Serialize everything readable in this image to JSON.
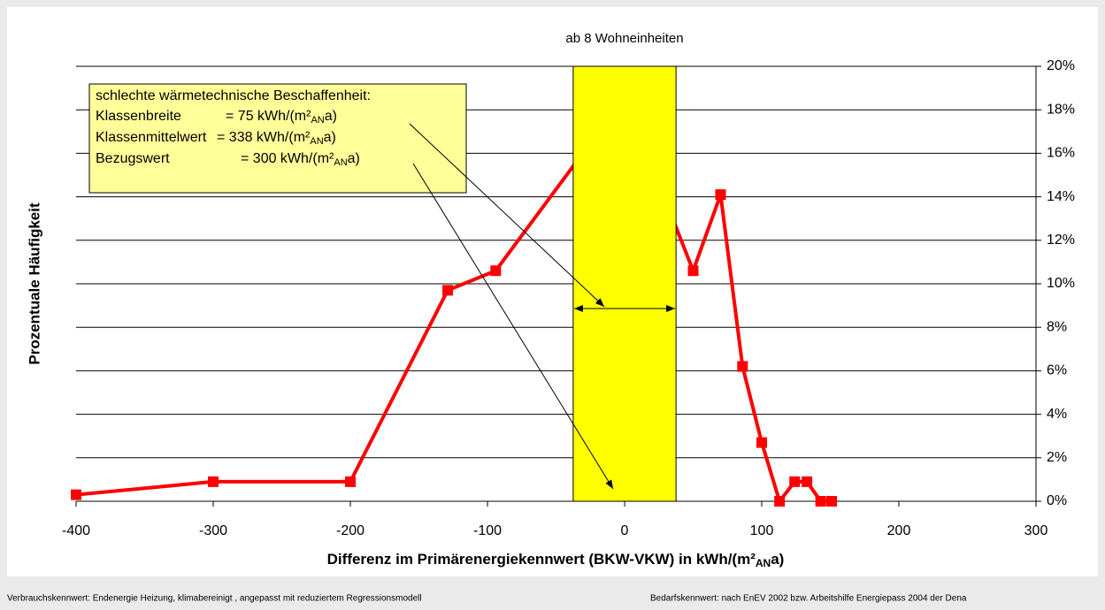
{
  "chart_data": {
    "type": "line",
    "title": "ab 8 Wohneinheiten",
    "x_label": [
      "Differenz im Primärenergiekennwert (BKW-VKW) in kWh/(m²",
      "AN",
      "a)"
    ],
    "y_label": "Prozentuale Häufigkeit",
    "x": [
      -400,
      -300,
      -200,
      -129,
      -94,
      0,
      50,
      70,
      86,
      100,
      113,
      124,
      133,
      143,
      151
    ],
    "series": [
      {
        "name": "Häufigkeit",
        "color": "#ff0000",
        "values": [
          0.3,
          0.9,
          0.9,
          9.7,
          10.6,
          18.6,
          10.6,
          14.1,
          6.2,
          2.7,
          0,
          0.9,
          0.9,
          0,
          0
        ]
      }
    ],
    "band": {
      "from": -37.5,
      "to": 37.5,
      "color": "#ffff00"
    },
    "xlim": [
      -400,
      300
    ],
    "xticks": [
      -400,
      -300,
      -200,
      -100,
      0,
      100,
      200,
      300
    ],
    "ylim": [
      0,
      20
    ],
    "yticks": [
      {
        "value": 0,
        "label": "0%"
      },
      {
        "value": 2,
        "label": "2%"
      },
      {
        "value": 4,
        "label": "4%"
      },
      {
        "value": 6,
        "label": "6%"
      },
      {
        "value": 8,
        "label": "8%"
      },
      {
        "value": 10,
        "label": "10%"
      },
      {
        "value": 12,
        "label": "12%"
      },
      {
        "value": 14,
        "label": "14%"
      },
      {
        "value": 16,
        "label": "16%"
      },
      {
        "value": 18,
        "label": "18%"
      },
      {
        "value": 20,
        "label": "20%"
      }
    ],
    "grid": true,
    "annotation": {
      "heading": "schlechte wärmetechnische Beschaffenheit:",
      "lines": [
        {
          "name": "Klassenbreite",
          "value": [
            "= 75 kWh/(m²",
            "AN",
            "a)"
          ]
        },
        {
          "name": "Klassenmittelwert",
          "value": [
            "= 338 kWh/(m²",
            "AN",
            "a)"
          ]
        },
        {
          "name": "Bezugswert",
          "value": [
            "= 300 kWh/(m²",
            "AN",
            "a)"
          ]
        }
      ]
    },
    "footnotes": [
      "Verbrauchskennwert: Endenergie Heizung, klimabereinigt , angepasst mit reduziertem Regressionsmodell",
      "Bedarfskennwert: nach EnEV 2002 bzw. Arbeitshilfe Energiepass 2004 der Dena"
    ]
  }
}
